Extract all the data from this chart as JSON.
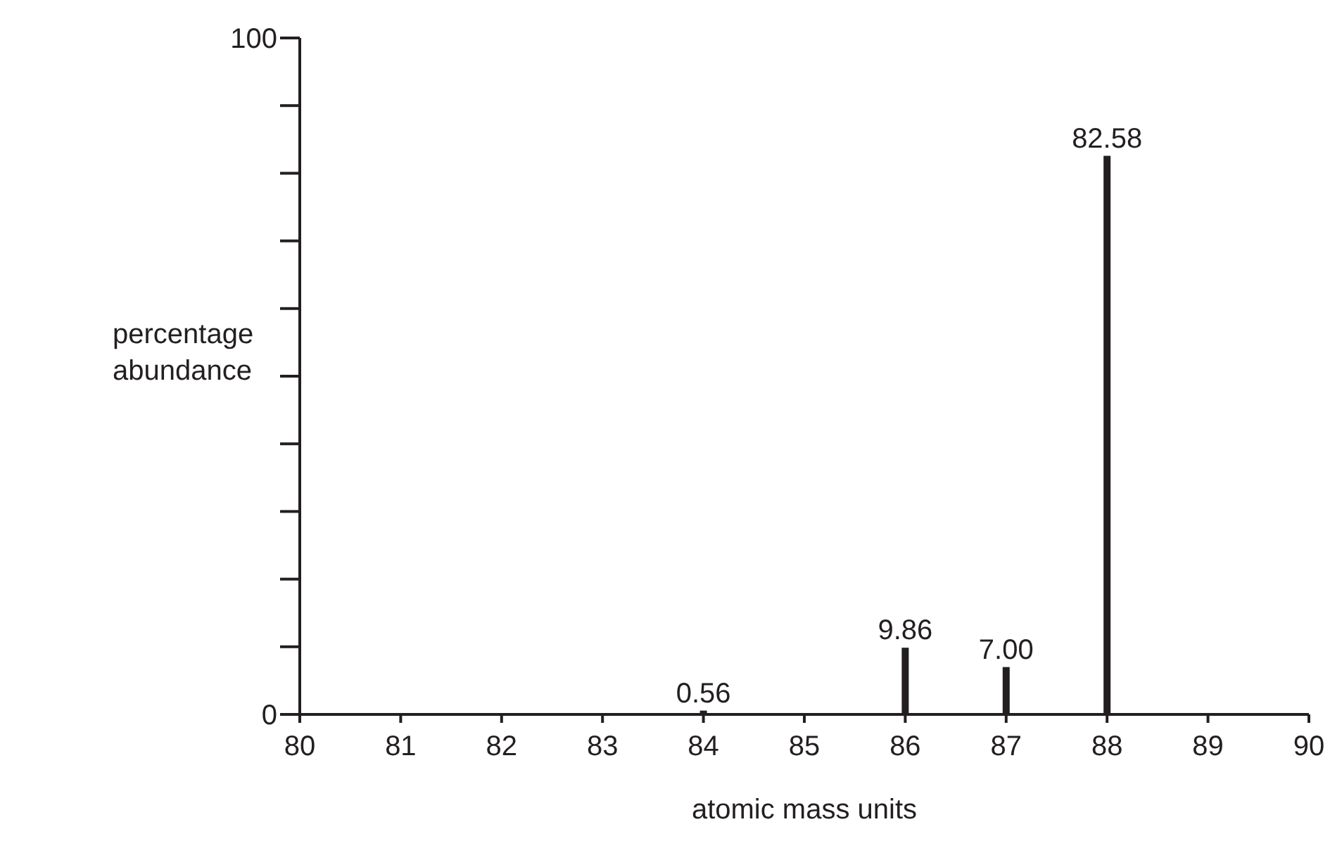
{
  "chart_data": {
    "type": "bar",
    "xlabel": "atomic mass units",
    "ylabel": "percentage abundance",
    "x": [
      84,
      86,
      87,
      88
    ],
    "values": [
      0.56,
      9.86,
      7.0,
      82.58
    ],
    "value_labels": [
      "0.56",
      "9.86",
      "7.00",
      "82.58"
    ],
    "color": "#231f20",
    "xlim": [
      80,
      90
    ],
    "xticks": [
      80,
      81,
      82,
      83,
      84,
      85,
      86,
      87,
      88,
      89,
      90
    ],
    "ylim": [
      0,
      100
    ],
    "yticks": [
      0,
      {
        "value": 10,
        "label": null
      },
      {
        "value": 20,
        "label": null
      },
      {
        "value": 30,
        "label": null
      },
      {
        "value": 40,
        "label": null
      },
      {
        "value": 50,
        "label": null
      },
      {
        "value": 60,
        "label": null
      },
      {
        "value": 70,
        "label": null
      },
      {
        "value": 80,
        "label": null
      },
      {
        "value": 90,
        "label": null
      },
      100
    ],
    "grid": false
  }
}
